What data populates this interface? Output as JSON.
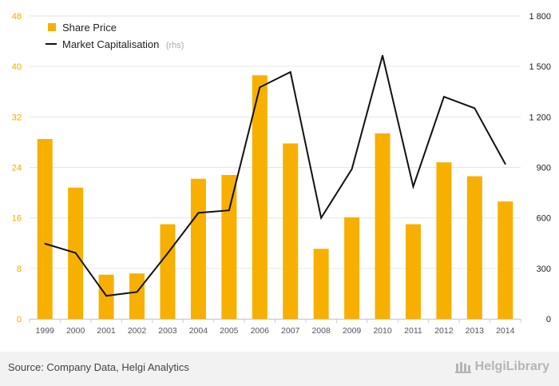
{
  "chart_data": {
    "type": "bar+line",
    "categories": [
      "1999",
      "2000",
      "2001",
      "2002",
      "2003",
      "2004",
      "2005",
      "2006",
      "2007",
      "2008",
      "2009",
      "2010",
      "2011",
      "2012",
      "2013",
      "2014"
    ],
    "series": [
      {
        "name": "Share Price",
        "type": "bar",
        "axis": "left",
        "color": "#f7b000",
        "values": [
          28.5,
          20.8,
          7.0,
          7.2,
          15.0,
          22.2,
          22.8,
          38.6,
          27.8,
          11.1,
          16.1,
          29.4,
          15.0,
          24.8,
          22.6,
          18.6
        ]
      },
      {
        "name": "Market Capitalisation",
        "name_suffix": "(rhs)",
        "type": "line",
        "axis": "right",
        "color": "#111111",
        "values": [
          447,
          392,
          137,
          160,
          390,
          630,
          645,
          1376,
          1467,
          600,
          890,
          1565,
          786,
          1320,
          1252,
          920
        ]
      }
    ],
    "left_axis": {
      "ticks": [
        "0",
        "8",
        "16",
        "24",
        "32",
        "40",
        "48"
      ],
      "ylim": [
        0,
        48
      ]
    },
    "right_axis": {
      "ticks": [
        "0",
        "300",
        "600",
        "900",
        "1 200",
        "1 500",
        "1 800"
      ],
      "ylim": [
        0,
        1800
      ]
    },
    "grid": true,
    "legend_position": "top-left"
  },
  "footer": {
    "source": "Source: Company Data, Helgi Analytics",
    "brand": "HelgiLibrary"
  }
}
